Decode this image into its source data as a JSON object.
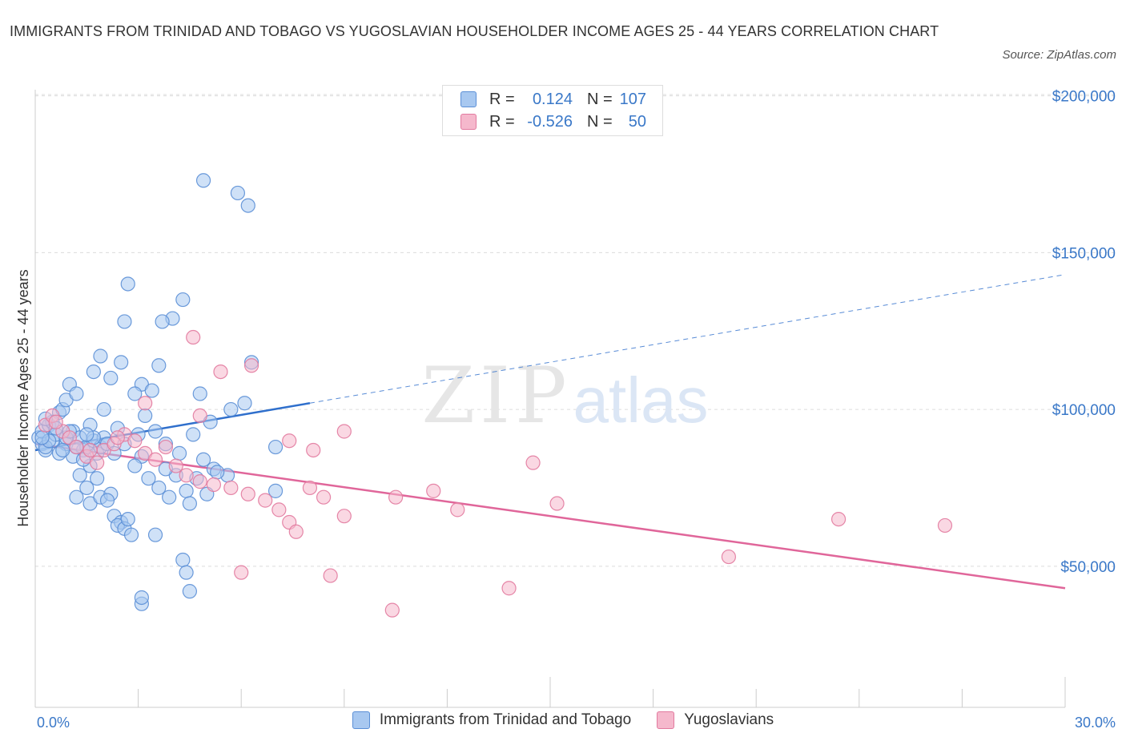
{
  "title": "IMMIGRANTS FROM TRINIDAD AND TOBAGO VS YUGOSLAVIAN HOUSEHOLDER INCOME AGES 25 - 44 YEARS CORRELATION CHART",
  "source": "Source: ZipAtlas.com",
  "watermark": {
    "zip": "ZIP",
    "atlas": "atlas"
  },
  "legend": {
    "r_label": "R =",
    "n_label": "N =",
    "rows": [
      {
        "r": "0.124",
        "n": "107",
        "fill": "#a8c8f0",
        "stroke": "#5b8fd6"
      },
      {
        "r": "-0.526",
        "n": "50",
        "fill": "#f5b8cc",
        "stroke": "#e27a9f"
      }
    ]
  },
  "bottom_legend": [
    {
      "label": "Immigrants from Trinidad and Tobago",
      "fill": "#a8c8f0",
      "stroke": "#5b8fd6"
    },
    {
      "label": "Yugoslavians",
      "fill": "#f5b8cc",
      "stroke": "#e27a9f"
    }
  ],
  "chart_data": {
    "type": "scatter",
    "xlabel": "",
    "ylabel": "Householder Income Ages 25 - 44 years",
    "xlim": [
      0,
      30
    ],
    "ylim": [
      5000,
      205000
    ],
    "x_tick_labels": [
      "0.0%",
      "30.0%"
    ],
    "y_ticks": [
      {
        "value": 50000,
        "label": "$50,000"
      },
      {
        "value": 100000,
        "label": "$100,000"
      },
      {
        "value": 150000,
        "label": "$150,000"
      },
      {
        "value": 200000,
        "label": "$200,000"
      }
    ],
    "grid": "horizontal-dashed",
    "series": [
      {
        "name": "Immigrants from Trinidad and Tobago",
        "color": "#5b8fd6",
        "fill": "#a8c8f0",
        "trend": {
          "x0": 0,
          "y0": 87000,
          "x1": 8,
          "y1": 102000,
          "dashed_to_x": 30,
          "dashed_to_y": 143000,
          "color": "#2f6fcc"
        },
        "points": [
          [
            0.1,
            91000
          ],
          [
            0.2,
            89000
          ],
          [
            0.3,
            87000
          ],
          [
            0.2,
            93000
          ],
          [
            0.4,
            95000
          ],
          [
            0.5,
            90000
          ],
          [
            0.3,
            88000
          ],
          [
            0.6,
            92000
          ],
          [
            0.7,
            99000
          ],
          [
            0.5,
            96000
          ],
          [
            0.8,
            100000
          ],
          [
            0.9,
            103000
          ],
          [
            1.0,
            108000
          ],
          [
            1.2,
            105000
          ],
          [
            1.1,
            93000
          ],
          [
            0.9,
            89000
          ],
          [
            0.7,
            86000
          ],
          [
            1.3,
            91000
          ],
          [
            1.4,
            87000
          ],
          [
            1.5,
            88000
          ],
          [
            1.6,
            95000
          ],
          [
            1.7,
            90000
          ],
          [
            1.8,
            86000
          ],
          [
            1.9,
            88000
          ],
          [
            2.0,
            91000
          ],
          [
            2.1,
            89000
          ],
          [
            1.6,
            82000
          ],
          [
            1.3,
            79000
          ],
          [
            1.8,
            78000
          ],
          [
            1.5,
            75000
          ],
          [
            1.2,
            72000
          ],
          [
            1.6,
            70000
          ],
          [
            1.9,
            72000
          ],
          [
            2.2,
            73000
          ],
          [
            2.3,
            66000
          ],
          [
            2.5,
            64000
          ],
          [
            2.1,
            71000
          ],
          [
            2.4,
            63000
          ],
          [
            2.6,
            62000
          ],
          [
            2.8,
            60000
          ],
          [
            1.9,
            117000
          ],
          [
            2.2,
            110000
          ],
          [
            2.5,
            115000
          ],
          [
            1.7,
            112000
          ],
          [
            2.7,
            140000
          ],
          [
            3.1,
            108000
          ],
          [
            2.9,
            105000
          ],
          [
            3.4,
            106000
          ],
          [
            3.6,
            114000
          ],
          [
            2.6,
            128000
          ],
          [
            3.2,
            98000
          ],
          [
            3.5,
            93000
          ],
          [
            3.8,
            89000
          ],
          [
            3.1,
            85000
          ],
          [
            2.9,
            82000
          ],
          [
            3.3,
            78000
          ],
          [
            3.6,
            75000
          ],
          [
            3.9,
            72000
          ],
          [
            4.1,
            79000
          ],
          [
            4.4,
            74000
          ],
          [
            4.2,
            86000
          ],
          [
            4.6,
            92000
          ],
          [
            4.9,
            84000
          ],
          [
            5.2,
            81000
          ],
          [
            5.6,
            79000
          ],
          [
            5.1,
            96000
          ],
          [
            4.8,
            105000
          ],
          [
            6.1,
            102000
          ],
          [
            5.7,
            100000
          ],
          [
            6.3,
            115000
          ],
          [
            4.0,
            129000
          ],
          [
            3.7,
            128000
          ],
          [
            4.3,
            135000
          ],
          [
            4.3,
            52000
          ],
          [
            4.4,
            48000
          ],
          [
            4.5,
            42000
          ],
          [
            3.1,
            38000
          ],
          [
            3.1,
            40000
          ],
          [
            3.5,
            60000
          ],
          [
            2.7,
            65000
          ],
          [
            0.3,
            97000
          ],
          [
            0.6,
            94000
          ],
          [
            0.9,
            91000
          ],
          [
            1.1,
            85000
          ],
          [
            1.4,
            84000
          ],
          [
            1.7,
            91000
          ],
          [
            2.3,
            86000
          ],
          [
            2.6,
            89000
          ],
          [
            3.0,
            92000
          ],
          [
            0.4,
            90000
          ],
          [
            4.5,
            70000
          ],
          [
            5.0,
            73000
          ],
          [
            5.3,
            80000
          ],
          [
            7.0,
            88000
          ],
          [
            7.0,
            74000
          ],
          [
            0.2,
            91000
          ],
          [
            0.8,
            87000
          ],
          [
            1.0,
            93000
          ],
          [
            1.2,
            88000
          ],
          [
            1.5,
            92000
          ],
          [
            4.9,
            173000
          ],
          [
            5.9,
            169000
          ],
          [
            6.2,
            165000
          ],
          [
            2.0,
            100000
          ],
          [
            2.4,
            94000
          ],
          [
            3.8,
            81000
          ],
          [
            4.7,
            78000
          ]
        ]
      },
      {
        "name": "Yugoslavians",
        "color": "#e27a9f",
        "fill": "#f5b8cc",
        "trend": {
          "x0": 0,
          "y0": 89000,
          "x1": 30,
          "y1": 43000,
          "color": "#e0669a"
        },
        "points": [
          [
            0.3,
            95000
          ],
          [
            0.5,
            98000
          ],
          [
            0.8,
            93000
          ],
          [
            1.0,
            91000
          ],
          [
            1.2,
            88000
          ],
          [
            1.5,
            85000
          ],
          [
            1.8,
            83000
          ],
          [
            2.0,
            87000
          ],
          [
            2.3,
            89000
          ],
          [
            2.6,
            92000
          ],
          [
            2.9,
            90000
          ],
          [
            3.2,
            86000
          ],
          [
            3.5,
            84000
          ],
          [
            3.8,
            88000
          ],
          [
            4.1,
            82000
          ],
          [
            4.4,
            79000
          ],
          [
            4.8,
            77000
          ],
          [
            5.2,
            76000
          ],
          [
            5.7,
            75000
          ],
          [
            6.2,
            73000
          ],
          [
            6.7,
            71000
          ],
          [
            7.1,
            68000
          ],
          [
            7.4,
            64000
          ],
          [
            7.6,
            61000
          ],
          [
            8.0,
            75000
          ],
          [
            8.4,
            72000
          ],
          [
            9.0,
            66000
          ],
          [
            10.5,
            72000
          ],
          [
            11.6,
            74000
          ],
          [
            12.3,
            68000
          ],
          [
            14.5,
            83000
          ],
          [
            15.2,
            70000
          ],
          [
            20.2,
            53000
          ],
          [
            23.4,
            65000
          ],
          [
            26.5,
            63000
          ],
          [
            4.6,
            123000
          ],
          [
            5.4,
            112000
          ],
          [
            6.3,
            114000
          ],
          [
            3.2,
            102000
          ],
          [
            4.8,
            98000
          ],
          [
            7.4,
            90000
          ],
          [
            8.1,
            87000
          ],
          [
            9.0,
            93000
          ],
          [
            6.0,
            48000
          ],
          [
            8.6,
            47000
          ],
          [
            10.4,
            36000
          ],
          [
            13.8,
            43000
          ],
          [
            2.4,
            91000
          ],
          [
            1.6,
            87000
          ],
          [
            0.6,
            96000
          ]
        ]
      }
    ]
  }
}
